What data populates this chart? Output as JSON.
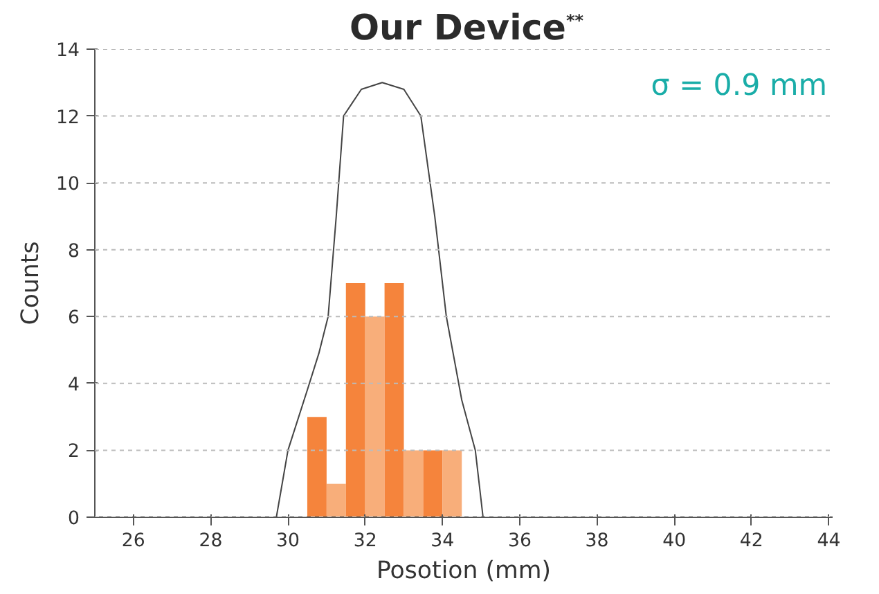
{
  "chart_data": {
    "type": "histogram",
    "title": "Our Device$^{**}$",
    "xlabel": "Posotion (mm)",
    "ylabel": "Counts",
    "annotations": [
      "σ = 0.9 mm"
    ],
    "series": [
      {
        "type": "histogram",
        "bins": [
          30.5,
          31,
          31.5,
          32,
          32.5,
          33,
          33.5,
          34,
          34.5
        ],
        "values": [
          3,
          1,
          7,
          6,
          7,
          2,
          2,
          2
        ],
        "colors": [
          "#f5843c",
          "#f8ae7a",
          "#f5843c",
          "#f8ae7a",
          "#f5843c",
          "#f8ae7a",
          "#f5843c",
          "#f8ae7a"
        ]
      },
      {
        "type": "line",
        "color": "#444444",
        "x": [
          29.7,
          29.85,
          30.0,
          30.5,
          30.8,
          31.04,
          31.25,
          31.44,
          31.9,
          32.44,
          33.0,
          33.44,
          33.8,
          34.1,
          34.5,
          34.85,
          35.05
        ],
        "values": [
          0,
          1,
          2,
          3.8,
          4.9,
          6,
          9,
          12,
          12.8,
          13,
          12.8,
          12,
          9,
          6,
          3.5,
          2,
          0
        ]
      }
    ],
    "xlim": [
      25,
      44.1
    ],
    "ylim": [
      0,
      14
    ],
    "xticks": [
      26,
      28,
      30,
      32,
      34,
      36,
      38,
      40,
      42,
      44
    ],
    "yticks": [
      0,
      2,
      4,
      6,
      8,
      10,
      12,
      14
    ],
    "grid": "y"
  }
}
